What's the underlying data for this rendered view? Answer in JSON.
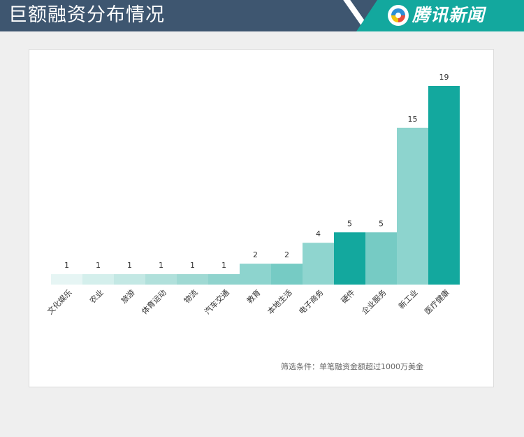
{
  "header": {
    "title": "巨额融资分布情况",
    "logo_text": "腾讯新闻",
    "logo_icon": "tencent-news-logo-icon"
  },
  "colors": {
    "header_bg": "#3e5670",
    "logo_bg": "#13a89e"
  },
  "chart_data": {
    "type": "bar",
    "categories": [
      "文化娱乐",
      "农业",
      "旅游",
      "体育运动",
      "物流",
      "汽车交通",
      "教育",
      "本地生活",
      "电子商务",
      "硬件",
      "企业服务",
      "新工业",
      "医疗健康"
    ],
    "values": [
      1,
      1,
      1,
      1,
      1,
      1,
      2,
      2,
      4,
      5,
      5,
      15,
      19
    ],
    "colors": [
      "#e6f5f4",
      "#d4efec",
      "#c3e8e4",
      "#b0e0db",
      "#9fd9d3",
      "#8fd3cd",
      "#8dd4ce",
      "#76cbc4",
      "#8fd5cf",
      "#13a89e",
      "#76cbc4",
      "#8dd4ce",
      "#13a89e"
    ],
    "ylim": [
      0,
      19
    ],
    "grid": false,
    "legend": "none"
  },
  "footnote": "筛选条件：单笔融资金额超过1000万美金"
}
